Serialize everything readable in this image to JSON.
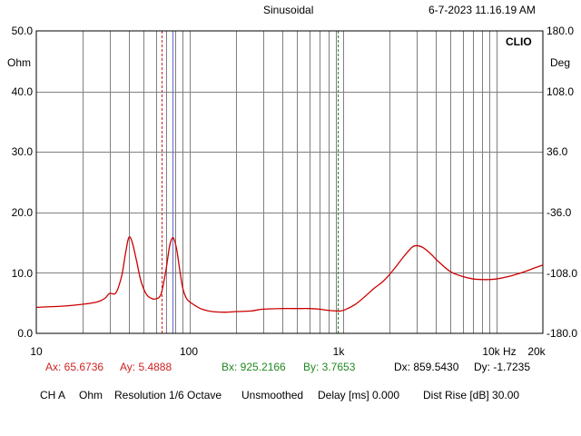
{
  "header": {
    "mode": "Sinusoidal",
    "timestamp": "6-7-2023 11.16.19 AM"
  },
  "brand": "CLIO",
  "colors": {
    "curve": "#cc0000",
    "cursor_a": "#cc2222",
    "cursor_b": "#228822",
    "grid": "#808080",
    "blue_line": "#6666cc"
  },
  "chart_data": {
    "type": "line",
    "x_scale": "log",
    "xlim": [
      10,
      20000
    ],
    "ylim": [
      0,
      50
    ],
    "ylim_right": [
      -180,
      180
    ],
    "ylabel": "Ohm",
    "ylabel_right": "Deg",
    "y_ticks": [
      "0.0",
      "10.0",
      "20.0",
      "30.0",
      "40.0",
      "50.0"
    ],
    "y_ticks_right": [
      "-180.0",
      "-108.0",
      "-36.0",
      "36.0",
      "108.0",
      "180.0"
    ],
    "x_ticks": [
      {
        "f": 10,
        "label": "10"
      },
      {
        "f": 100,
        "label": "100"
      },
      {
        "f": 1000,
        "label": "1k"
      },
      {
        "f": 10000,
        "label": "10k"
      },
      {
        "f": 20000,
        "label": "20k"
      }
    ],
    "x_unit": "Hz",
    "series": [
      {
        "x": [
          10,
          15,
          20,
          25,
          28,
          30,
          33,
          36,
          38,
          40,
          42,
          45,
          48,
          52,
          56,
          60,
          65,
          70,
          74,
          78,
          82,
          86,
          90,
          95,
          100,
          110,
          120,
          140,
          170,
          200,
          250,
          300,
          400,
          500,
          600,
          700,
          800,
          900,
          1000,
          1200,
          1400,
          1600,
          1800,
          2000,
          2200,
          2500,
          2800,
          3000,
          3300,
          3700,
          4200,
          5000,
          6000,
          7000,
          8000,
          9000,
          10000,
          12000,
          14000,
          16000,
          18000,
          20000
        ],
        "y": [
          4.3,
          4.5,
          4.8,
          5.2,
          5.8,
          6.6,
          6.7,
          9.5,
          13.0,
          15.8,
          15.2,
          12.0,
          8.7,
          6.5,
          5.8,
          5.7,
          6.5,
          10.5,
          14.5,
          15.8,
          14.0,
          10.5,
          7.5,
          5.8,
          5.2,
          4.5,
          4.0,
          3.6,
          3.5,
          3.6,
          3.7,
          4.0,
          4.1,
          4.1,
          4.1,
          4.0,
          3.8,
          3.7,
          3.8,
          4.8,
          6.2,
          7.5,
          8.5,
          9.7,
          11.0,
          12.8,
          14.2,
          14.5,
          14.2,
          13.2,
          11.8,
          10.2,
          9.4,
          9.0,
          8.9,
          8.9,
          9.0,
          9.4,
          9.9,
          10.4,
          10.9,
          11.3
        ]
      }
    ],
    "cursors": {
      "a": {
        "x": 65.6736
      },
      "b": {
        "x": 925.2166
      },
      "blue": {
        "x": 77
      }
    }
  },
  "readouts": {
    "ax": "Ax: 65.6736",
    "ay": "Ay: 5.4888",
    "bx": "Bx: 925.2166",
    "by": "By: 3.7653",
    "dx": "Dx: 859.5430",
    "dy": "Dy: -1.7235"
  },
  "status_bar": {
    "channel": "CH A",
    "unit": "Ohm",
    "resolution": "Resolution 1/6 Octave",
    "smoothing": "Unsmoothed",
    "delay": "Delay [ms] 0.000",
    "dist_rise": "Dist Rise [dB] 30.00"
  }
}
